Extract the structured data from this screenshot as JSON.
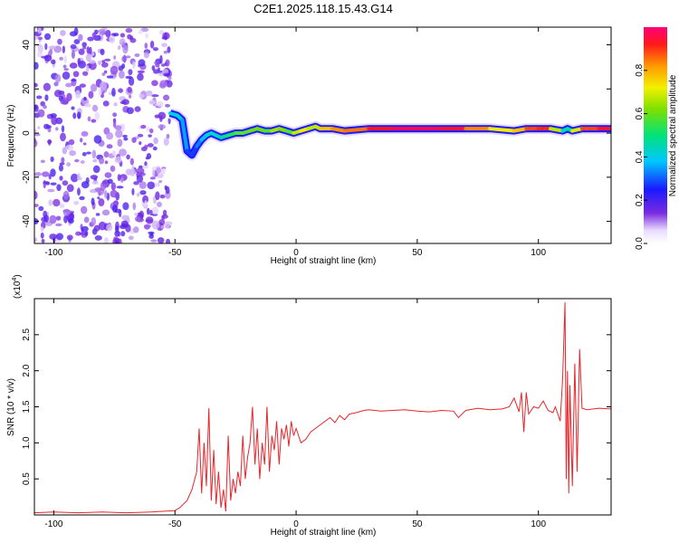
{
  "title": "C2E1.2025.118.15.43.G14",
  "colors": {
    "snr_line": "#e8242a",
    "scatter": "#7a2be0",
    "axis": "#000000"
  },
  "chart_data": [
    {
      "type": "heatmap",
      "xlabel": "Height of straight line (km)",
      "ylabel": "Frequency (Hz)",
      "xlim": [
        -108,
        130
      ],
      "ylim": [
        -50,
        48
      ],
      "x_ticks": [
        "-100",
        "-50",
        "0",
        "50",
        "100"
      ],
      "x_tick_values": [
        -100,
        -50,
        0,
        50,
        100
      ],
      "y_ticks": [
        "40",
        "20",
        "0",
        "-20",
        "-40"
      ],
      "y_tick_values": [
        40,
        20,
        0,
        -20,
        -40
      ],
      "colorbar": {
        "label": "Normalized spectral amplitude",
        "ticks": [
          "0.0",
          "0.2",
          "0.4",
          "0.6",
          "0.8"
        ],
        "tick_values": [
          0.0,
          0.2,
          0.4,
          0.6,
          0.8
        ],
        "range": [
          0,
          1
        ]
      },
      "trace": {
        "x": [
          -52,
          -49,
          -47,
          -45,
          -43,
          -41,
          -39,
          -37,
          -35,
          -33,
          -31,
          -28,
          -25,
          -22,
          -19,
          -16,
          -13,
          -10,
          -7,
          -4,
          -1,
          2,
          5,
          8,
          10,
          15,
          20,
          30,
          40,
          50,
          60,
          70,
          80,
          90,
          95,
          100,
          105,
          110,
          112,
          114,
          118,
          125,
          130
        ],
        "y": [
          9,
          8,
          6,
          -8,
          -10,
          -6,
          -3,
          -1,
          0,
          -1,
          -2,
          -1,
          0,
          0,
          1,
          2,
          1,
          1,
          2,
          1,
          0,
          1,
          2,
          3,
          2,
          2,
          1,
          2,
          2,
          2,
          2,
          2,
          2,
          1,
          2,
          2,
          2,
          1,
          2,
          1,
          2,
          2,
          2
        ],
        "amplitude": [
          0.35,
          0.45,
          0.4,
          0.3,
          0.25,
          0.3,
          0.35,
          0.4,
          0.45,
          0.4,
          0.45,
          0.5,
          0.55,
          0.6,
          0.55,
          0.65,
          0.55,
          0.6,
          0.7,
          0.55,
          0.6,
          0.75,
          0.7,
          0.65,
          0.7,
          0.85,
          0.8,
          0.9,
          0.95,
          0.98,
          0.95,
          0.92,
          0.75,
          0.7,
          0.85,
          0.92,
          0.9,
          0.45,
          0.4,
          0.55,
          0.85,
          0.92,
          0.95
        ]
      },
      "noise_region_x": [
        -108,
        -52
      ]
    },
    {
      "type": "line",
      "xlabel": "Height of straight line (km)",
      "ylabel": "SNR (10 * v/v)",
      "multiplier_label": "(x10",
      "multiplier_exp": "4",
      "multiplier_close": ")",
      "xlim": [
        -108,
        130
      ],
      "ylim": [
        0,
        3.0
      ],
      "x_ticks": [
        "-100",
        "-50",
        "0",
        "50",
        "100"
      ],
      "x_tick_values": [
        -100,
        -50,
        0,
        50,
        100
      ],
      "y_ticks": [
        "0.5",
        "1.0",
        "1.5",
        "2.0",
        "2.5"
      ],
      "y_tick_values": [
        0.5,
        1.0,
        1.5,
        2.0,
        2.5
      ],
      "series": [
        {
          "x": [
            -108,
            -100,
            -90,
            -80,
            -70,
            -60,
            -55,
            -50,
            -48,
            -45,
            -43,
            -41,
            -40,
            -39,
            -38,
            -37,
            -36,
            -35,
            -34,
            -33,
            -32,
            -31,
            -30,
            -29,
            -28,
            -27,
            -26,
            -25,
            -24,
            -23,
            -22,
            -21,
            -20,
            -19,
            -18,
            -17,
            -16,
            -15,
            -14,
            -13,
            -12,
            -11,
            -10,
            -9,
            -8,
            -7,
            -6,
            -5,
            -4,
            -3,
            -2,
            -1,
            0,
            2,
            4,
            6,
            8,
            10,
            12,
            14,
            16,
            18,
            20,
            22,
            25,
            28,
            30,
            35,
            40,
            45,
            50,
            55,
            60,
            65,
            67,
            70,
            75,
            80,
            85,
            88,
            90,
            92,
            93,
            94,
            95,
            96,
            98,
            100,
            102,
            104,
            106,
            107,
            108,
            109,
            110,
            111,
            111.5,
            112,
            112.5,
            113,
            114,
            115,
            116,
            117,
            118,
            120,
            125,
            130
          ],
          "y": [
            0.03,
            0.04,
            0.03,
            0.04,
            0.03,
            0.04,
            0.05,
            0.06,
            0.1,
            0.2,
            0.35,
            0.6,
            1.2,
            0.3,
            1.0,
            0.4,
            1.48,
            0.2,
            0.9,
            0.15,
            0.6,
            0.1,
            0.35,
            0.05,
            1.1,
            0.2,
            0.5,
            0.3,
            0.6,
            0.4,
            1.1,
            0.5,
            0.8,
            1.0,
            1.5,
            0.7,
            1.2,
            0.5,
            1.0,
            0.7,
            1.5,
            0.6,
            1.1,
            0.9,
            1.3,
            0.7,
            1.2,
            1.05,
            1.25,
            0.95,
            1.3,
            1.1,
            1.2,
            1.0,
            1.05,
            1.15,
            1.2,
            1.25,
            1.3,
            1.35,
            1.28,
            1.38,
            1.32,
            1.4,
            1.42,
            1.45,
            1.46,
            1.44,
            1.45,
            1.46,
            1.44,
            1.43,
            1.45,
            1.44,
            1.35,
            1.45,
            1.48,
            1.46,
            1.47,
            1.5,
            1.62,
            1.43,
            1.7,
            1.15,
            1.7,
            1.4,
            1.5,
            1.48,
            1.58,
            1.45,
            1.42,
            1.5,
            1.4,
            1.3,
            1.9,
            2.95,
            0.5,
            2.0,
            0.3,
            1.8,
            0.4,
            2.1,
            0.6,
            2.3,
            1.48,
            1.46,
            1.48,
            1.47
          ]
        }
      ]
    }
  ]
}
